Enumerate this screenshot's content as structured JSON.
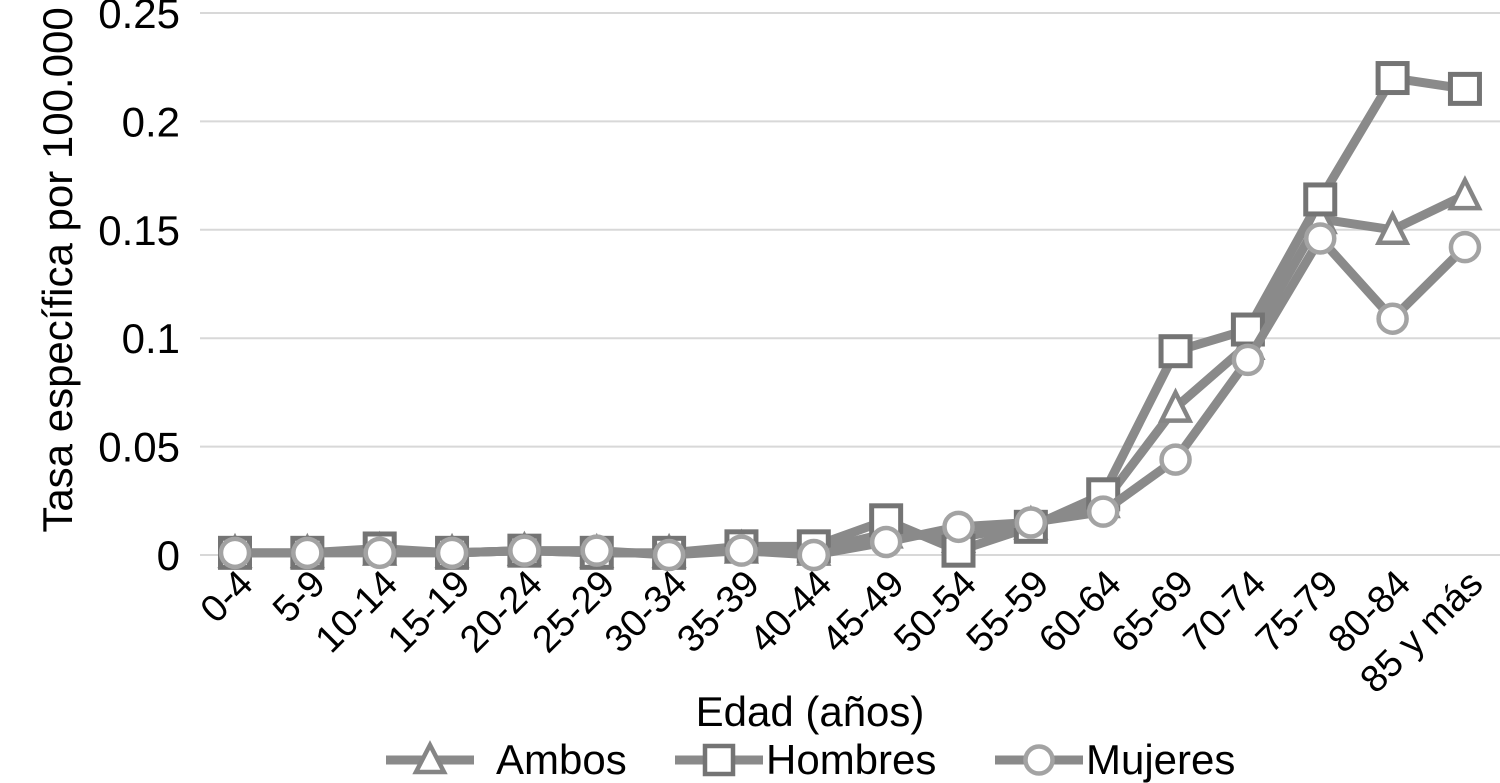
{
  "chart_data": {
    "type": "line",
    "title": "",
    "ylabel": "Tasa específica por 100.000",
    "xlabel": "Edad (años)",
    "categories": [
      "0-4",
      "5-9",
      "10-14",
      "15-19",
      "20-24",
      "25-29",
      "30-34",
      "35-39",
      "40-44",
      "45-49",
      "50-54",
      "55-59",
      "60-64",
      "65-69",
      "70-74",
      "75-79",
      "80-84",
      "85 y más"
    ],
    "yticks": [
      0,
      0.05,
      0.1,
      0.15,
      0.2,
      0.25
    ],
    "ytick_labels": [
      "0",
      "0.05",
      "0.1",
      "0.15",
      "0.2",
      "0.25"
    ],
    "ylim": [
      0,
      0.25
    ],
    "grid": "horizontal-only",
    "legend_position": "bottom",
    "colors": {
      "line": "#8a8a8a",
      "gridline": "#d8d8d8",
      "text": "#000000",
      "marker_fill": "#ffffff"
    },
    "series": [
      {
        "name": "Ambos",
        "marker": "triangle",
        "marker_stroke": "#858585",
        "values": [
          0.001,
          0.001,
          0.002,
          0.001,
          0.002,
          0.001,
          0.001,
          0.003,
          0.002,
          0.01,
          0.008,
          0.014,
          0.024,
          0.068,
          0.097,
          0.155,
          0.15,
          0.166
        ]
      },
      {
        "name": "Hombres",
        "marker": "square",
        "marker_stroke": "#747474",
        "values": [
          0.001,
          0.001,
          0.003,
          0.001,
          0.002,
          0.001,
          0.001,
          0.004,
          0.004,
          0.016,
          0.002,
          0.013,
          0.028,
          0.094,
          0.104,
          0.164,
          0.22,
          0.215
        ]
      },
      {
        "name": "Mujeres",
        "marker": "circle",
        "marker_stroke": "#a3a3a3",
        "values": [
          0.001,
          0.001,
          0.001,
          0.001,
          0.002,
          0.002,
          0.0,
          0.002,
          0.0,
          0.006,
          0.013,
          0.015,
          0.02,
          0.044,
          0.09,
          0.146,
          0.109,
          0.142
        ]
      }
    ]
  }
}
